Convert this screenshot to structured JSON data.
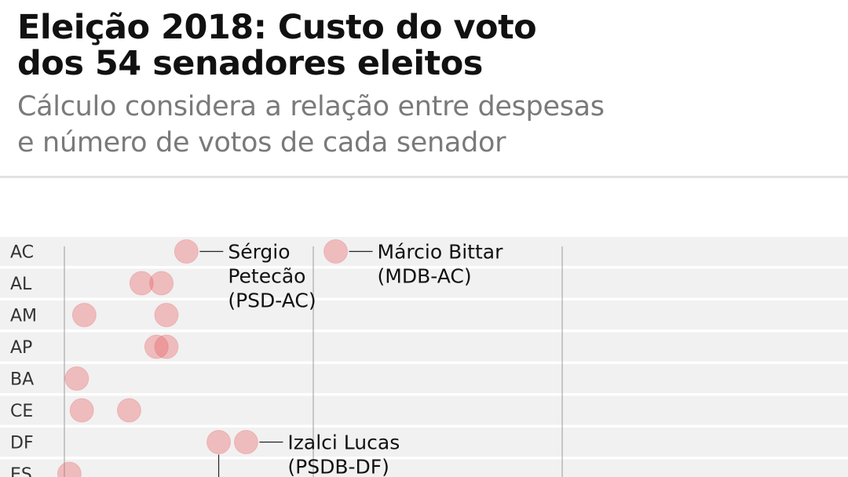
{
  "header": {
    "title_line1": "Eleição 2018: Custo do voto",
    "title_line2": "dos 54 senadores eleitos",
    "subtitle_line1": "Cálculo considera a relação entre despesas",
    "subtitle_line2": "e número de votos de cada senador"
  },
  "colors": {
    "dot": "#e8595c",
    "row_band": "#f1f1f1",
    "grid_line": "#9a9a9a",
    "leader_line": "#222222"
  },
  "chart_data": {
    "type": "scatter",
    "orientation": "horizontal-strip",
    "categories": [
      "AC",
      "AL",
      "AM",
      "AP",
      "BA",
      "CE",
      "DF",
      "ES"
    ],
    "xlim": [
      0,
      25
    ],
    "gridlines_x": [
      0,
      10,
      20
    ],
    "points": [
      {
        "state": "AC",
        "x": 4.9
      },
      {
        "state": "AC",
        "x": 10.9
      },
      {
        "state": "AL",
        "x": 3.1
      },
      {
        "state": "AL",
        "x": 3.9
      },
      {
        "state": "AM",
        "x": 0.8
      },
      {
        "state": "AM",
        "x": 4.1
      },
      {
        "state": "AP",
        "x": 3.7
      },
      {
        "state": "AP",
        "x": 4.1
      },
      {
        "state": "BA",
        "x": 0.5
      },
      {
        "state": "CE",
        "x": 0.7
      },
      {
        "state": "CE",
        "x": 2.6
      },
      {
        "state": "DF",
        "x": 6.2
      },
      {
        "state": "DF",
        "x": 7.3
      },
      {
        "state": "ES",
        "x": 0.2
      }
    ],
    "annotations": [
      {
        "name": "Sérgio",
        "lines": [
          "Sérgio",
          "Petecão",
          "(PSD-AC)"
        ],
        "state": "AC",
        "x": 4.9
      },
      {
        "name": "Márcio Bittar",
        "lines": [
          "Márcio Bittar",
          "(MDB-AC)"
        ],
        "state": "AC",
        "x": 10.9
      },
      {
        "name": "Izalci Lucas",
        "lines": [
          "Izalci Lucas",
          "(PSDB-DF)"
        ],
        "state": "DF",
        "x": 7.3
      }
    ]
  }
}
